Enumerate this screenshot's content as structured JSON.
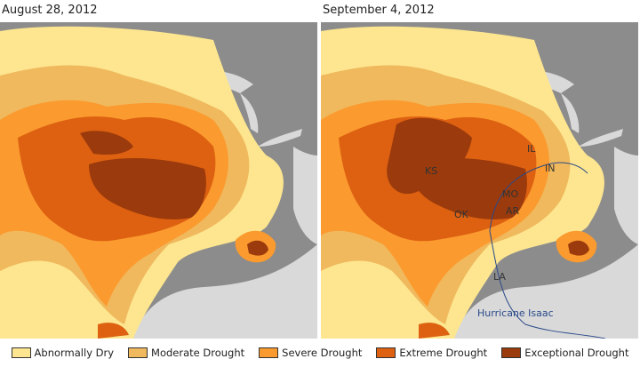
{
  "maps": [
    {
      "title": "August 28, 2012"
    },
    {
      "title": "September 4, 2012",
      "state_labels": [
        "KS",
        "OK",
        "MO",
        "AR",
        "IL",
        "IN",
        "LA"
      ],
      "storm_label": "Hurricane Isaac"
    }
  ],
  "legend": [
    {
      "label": "Abnormally Dry",
      "color": "#fde68f"
    },
    {
      "label": "Moderate Drought",
      "color": "#f0b95e"
    },
    {
      "label": "Severe Drought",
      "color": "#fb9a2e"
    },
    {
      "label": "Extreme Drought",
      "color": "#dd6111"
    },
    {
      "label": "Exceptional Drought",
      "color": "#9b3a0c"
    }
  ],
  "colors": {
    "land": "#8c8c8c",
    "water": "#d9d9d9",
    "track": "#2a4a8a"
  }
}
